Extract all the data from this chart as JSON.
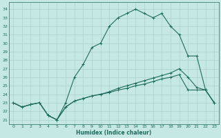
{
  "xlabel": "Humidex (Indice chaleur)",
  "bg_color": "#c5e8e5",
  "grid_color": "#afd4d0",
  "line_color": "#1e6b5e",
  "xlim": [
    -0.5,
    23.5
  ],
  "ylim": [
    20.5,
    34.8
  ],
  "yticks": [
    21,
    22,
    23,
    24,
    25,
    26,
    27,
    28,
    29,
    30,
    31,
    32,
    33,
    34
  ],
  "xticks": [
    0,
    1,
    2,
    3,
    4,
    5,
    6,
    7,
    8,
    9,
    10,
    11,
    12,
    13,
    14,
    15,
    16,
    17,
    18,
    19,
    20,
    21,
    22,
    23
  ],
  "series": [
    [
      23.0,
      22.5,
      22.8,
      23.0,
      21.5,
      21.0,
      22.5,
      23.2,
      23.5,
      23.8,
      24.0,
      24.2,
      24.5,
      24.7,
      25.0,
      25.2,
      25.5,
      25.8,
      26.0,
      26.3,
      24.5,
      24.5,
      24.5,
      23.0
    ],
    [
      23.0,
      22.5,
      22.8,
      23.0,
      21.5,
      21.0,
      22.5,
      23.2,
      23.5,
      23.8,
      24.0,
      24.3,
      24.7,
      25.0,
      25.3,
      25.6,
      25.9,
      26.2,
      26.5,
      27.0,
      26.0,
      24.8,
      24.5,
      23.0
    ],
    [
      23.0,
      22.5,
      22.8,
      23.0,
      21.5,
      21.0,
      23.0,
      26.0,
      27.5,
      29.5,
      30.0,
      32.0,
      33.0,
      33.5,
      34.0,
      33.5,
      33.0,
      33.5,
      32.0,
      31.0,
      28.5,
      28.5,
      24.5,
      23.0
    ]
  ]
}
